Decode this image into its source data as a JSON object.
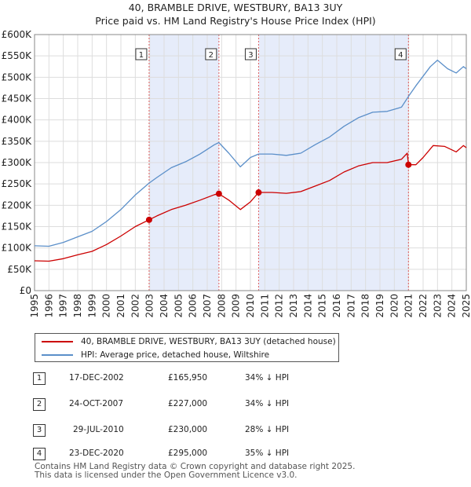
{
  "chart_data": {
    "type": "line",
    "title": "40, BRAMBLE DRIVE, WESTBURY, BA13 3UY",
    "subtitle": "Price paid vs. HM Land Registry's House Price Index (HPI)",
    "xlim": [
      1995,
      2025
    ],
    "ylim": [
      0,
      600000
    ],
    "x_ticks": [
      "1995",
      "1996",
      "1997",
      "1998",
      "1999",
      "2000",
      "2001",
      "2002",
      "2003",
      "2004",
      "2005",
      "2006",
      "2007",
      "2008",
      "2009",
      "2010",
      "2011",
      "2012",
      "2013",
      "2014",
      "2015",
      "2016",
      "2017",
      "2018",
      "2019",
      "2020",
      "2021",
      "2022",
      "2023",
      "2024",
      "2025"
    ],
    "y_ticks": [
      {
        "value": 0,
        "label": "£0"
      },
      {
        "value": 50000,
        "label": "£50K"
      },
      {
        "value": 100000,
        "label": "£100K"
      },
      {
        "value": 150000,
        "label": "£150K"
      },
      {
        "value": 200000,
        "label": "£200K"
      },
      {
        "value": 250000,
        "label": "£250K"
      },
      {
        "value": 300000,
        "label": "£300K"
      },
      {
        "value": 350000,
        "label": "£350K"
      },
      {
        "value": 400000,
        "label": "£400K"
      },
      {
        "value": 450000,
        "label": "£450K"
      },
      {
        "value": 500000,
        "label": "£500K"
      },
      {
        "value": 550000,
        "label": "£550K"
      },
      {
        "value": 600000,
        "label": "£600K"
      }
    ],
    "series": [
      {
        "name": "40, BRAMBLE DRIVE, WESTBURY, BA13 3UY (detached house)",
        "color": "#cc0000",
        "points": [
          [
            1995.0,
            70000
          ],
          [
            1996.0,
            69000
          ],
          [
            1997.0,
            75000
          ],
          [
            1998.0,
            84000
          ],
          [
            1999.0,
            92000
          ],
          [
            2000.0,
            108000
          ],
          [
            2001.0,
            128000
          ],
          [
            2002.0,
            150000
          ],
          [
            2002.96,
            165950
          ],
          [
            2003.5,
            175000
          ],
          [
            2004.5,
            190000
          ],
          [
            2005.5,
            200000
          ],
          [
            2006.5,
            212000
          ],
          [
            2007.5,
            225000
          ],
          [
            2007.81,
            227000
          ],
          [
            2008.5,
            212000
          ],
          [
            2009.3,
            190000
          ],
          [
            2010.0,
            208000
          ],
          [
            2010.57,
            230000
          ],
          [
            2011.5,
            230000
          ],
          [
            2012.5,
            228000
          ],
          [
            2013.5,
            232000
          ],
          [
            2014.5,
            245000
          ],
          [
            2015.5,
            258000
          ],
          [
            2016.5,
            278000
          ],
          [
            2017.5,
            292000
          ],
          [
            2018.5,
            300000
          ],
          [
            2019.5,
            300000
          ],
          [
            2020.5,
            308000
          ],
          [
            2020.9,
            322000
          ],
          [
            2020.98,
            295000
          ],
          [
            2021.5,
            295000
          ],
          [
            2022.0,
            312000
          ],
          [
            2022.7,
            340000
          ],
          [
            2023.5,
            338000
          ],
          [
            2024.3,
            325000
          ],
          [
            2024.8,
            340000
          ],
          [
            2025.0,
            335000
          ]
        ]
      },
      {
        "name": "HPI: Average price, detached house, Wiltshire",
        "color": "#5b8fc9",
        "points": [
          [
            1995.0,
            105000
          ],
          [
            1996.0,
            104000
          ],
          [
            1997.0,
            113000
          ],
          [
            1998.0,
            126000
          ],
          [
            1999.0,
            139000
          ],
          [
            2000.0,
            162000
          ],
          [
            2001.0,
            190000
          ],
          [
            2002.0,
            224000
          ],
          [
            2002.96,
            252000
          ],
          [
            2003.5,
            265000
          ],
          [
            2004.5,
            288000
          ],
          [
            2005.5,
            302000
          ],
          [
            2006.5,
            320000
          ],
          [
            2007.5,
            342000
          ],
          [
            2007.81,
            347000
          ],
          [
            2008.5,
            322000
          ],
          [
            2009.3,
            290000
          ],
          [
            2010.0,
            312000
          ],
          [
            2010.57,
            320000
          ],
          [
            2011.5,
            320000
          ],
          [
            2012.5,
            317000
          ],
          [
            2013.5,
            322000
          ],
          [
            2014.5,
            342000
          ],
          [
            2015.5,
            360000
          ],
          [
            2016.5,
            385000
          ],
          [
            2017.5,
            405000
          ],
          [
            2018.5,
            418000
          ],
          [
            2019.5,
            420000
          ],
          [
            2020.5,
            430000
          ],
          [
            2020.98,
            455000
          ],
          [
            2021.5,
            480000
          ],
          [
            2022.5,
            525000
          ],
          [
            2023.0,
            540000
          ],
          [
            2023.7,
            520000
          ],
          [
            2024.3,
            510000
          ],
          [
            2024.8,
            525000
          ],
          [
            2025.0,
            520000
          ]
        ]
      }
    ],
    "shaded_periods": [
      [
        2002.96,
        2007.81
      ],
      [
        2010.57,
        2020.98
      ]
    ],
    "sales": [
      {
        "label": "1",
        "x": 2002.96,
        "price": 165950
      },
      {
        "label": "2",
        "x": 2007.81,
        "price": 227000
      },
      {
        "label": "3",
        "x": 2010.57,
        "price": 230000
      },
      {
        "label": "4",
        "x": 2020.98,
        "price": 295000
      }
    ],
    "legend": {
      "property": "40, BRAMBLE DRIVE, WESTBURY, BA13 3UY (detached house)",
      "hpi": "HPI: Average price, detached house, Wiltshire"
    },
    "transactions": [
      {
        "num": "1",
        "date": "17-DEC-2002",
        "price": "£165,950",
        "hpi": "34% ↓ HPI"
      },
      {
        "num": "2",
        "date": "24-OCT-2007",
        "price": "£227,000",
        "hpi": "34% ↓ HPI"
      },
      {
        "num": "3",
        "date": "29-JUL-2010",
        "price": "£230,000",
        "hpi": "28% ↓ HPI"
      },
      {
        "num": "4",
        "date": "23-DEC-2020",
        "price": "£295,000",
        "hpi": "35% ↓ HPI"
      }
    ],
    "footer_line1": "Contains HM Land Registry data © Crown copyright and database right 2025.",
    "footer_line2": "This data is licensed under the Open Government Licence v3.0."
  }
}
